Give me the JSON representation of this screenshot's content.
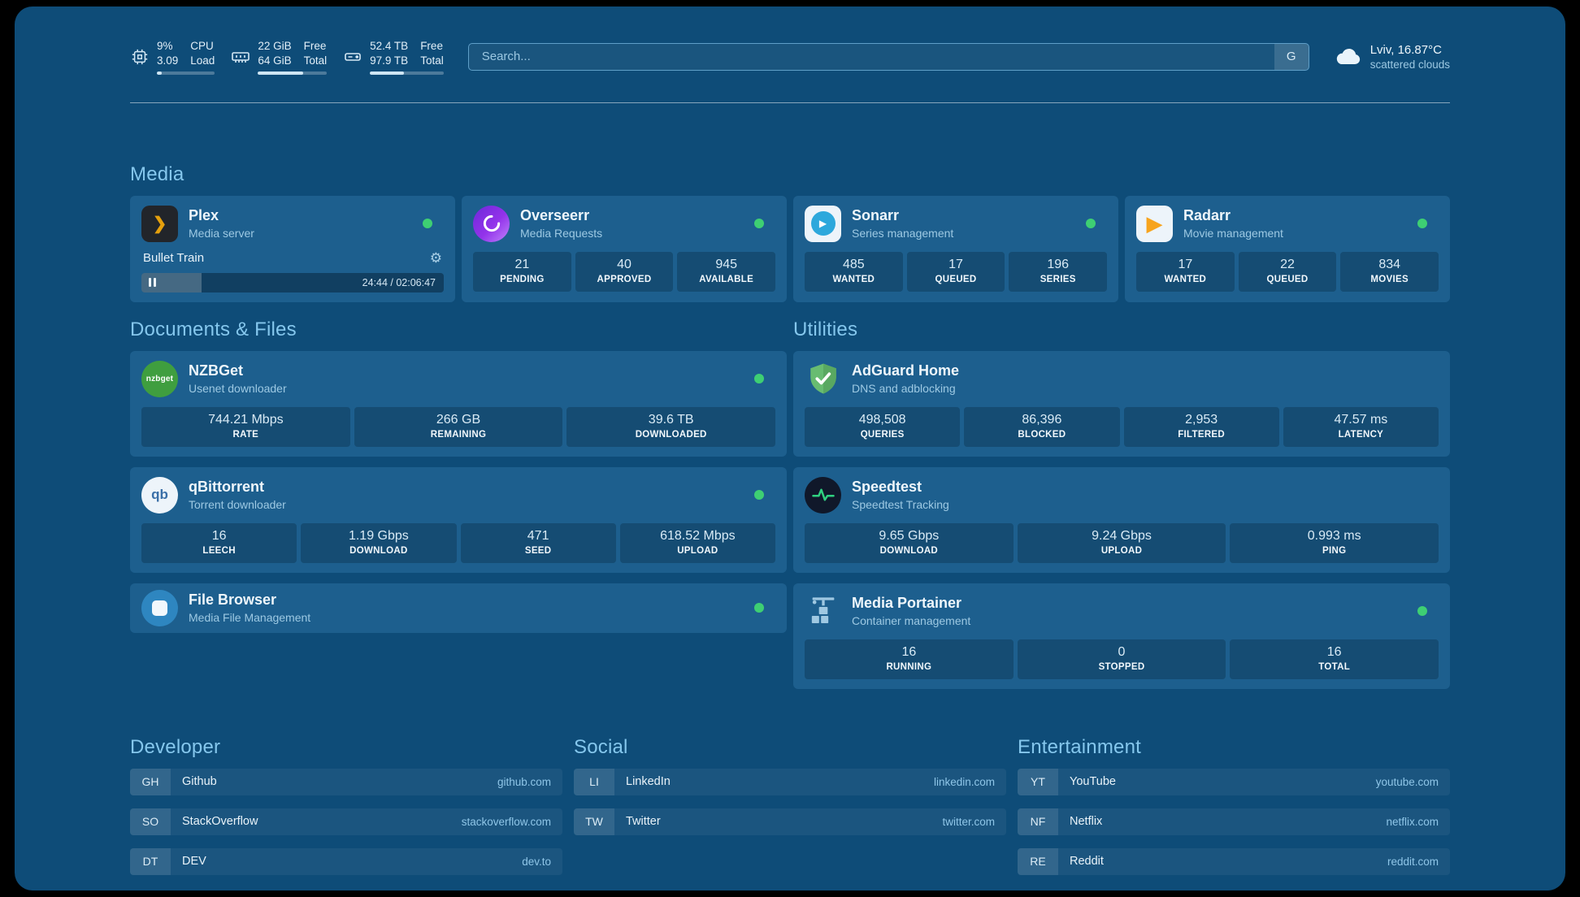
{
  "colors": {
    "background": "#0e4c78",
    "card": "#1d5f8e",
    "section_header": "#85c7ed",
    "status_online": "#3ecf73",
    "plex_amber": "#e5a00d"
  },
  "topbar": {
    "resources": [
      {
        "icon": "cpu-chip-icon",
        "primary": "9%",
        "secondary": "3.09",
        "label_primary": "CPU",
        "label_secondary": "Load",
        "bar_fill_pct": 9
      },
      {
        "icon": "memory-icon",
        "primary": "22 GiB",
        "secondary": "64 GiB",
        "label_primary": "Free",
        "label_secondary": "Total",
        "bar_fill_pct": 66
      },
      {
        "icon": "disk-icon",
        "primary": "52.4 TB",
        "secondary": "97.9 TB",
        "label_primary": "Free",
        "label_secondary": "Total",
        "bar_fill_pct": 46
      }
    ],
    "search": {
      "placeholder": "Search...",
      "provider_button": "G"
    },
    "weather": {
      "icon": "cloud-icon",
      "location": "Lviv, 16.87°C",
      "condition": "scattered clouds"
    }
  },
  "sections": {
    "media": "Media",
    "documents": "Documents & Files",
    "utilities": "Utilities"
  },
  "media_cards": {
    "plex": {
      "title": "Plex",
      "subtitle": "Media server",
      "status": "online",
      "icon": "plex-icon",
      "player": {
        "track": "Bullet Train",
        "time": "24:44 / 02:06:47",
        "progress_pct": 20,
        "state": "paused"
      }
    },
    "overseerr": {
      "title": "Overseerr",
      "subtitle": "Media Requests",
      "status": "online",
      "icon": "overseerr-icon",
      "stats": [
        {
          "value": "21",
          "label": "PENDING"
        },
        {
          "value": "40",
          "label": "APPROVED"
        },
        {
          "value": "945",
          "label": "AVAILABLE"
        }
      ]
    },
    "sonarr": {
      "title": "Sonarr",
      "subtitle": "Series management",
      "status": "online",
      "icon": "sonarr-icon",
      "stats": [
        {
          "value": "485",
          "label": "WANTED"
        },
        {
          "value": "17",
          "label": "QUEUED"
        },
        {
          "value": "196",
          "label": "SERIES"
        }
      ]
    },
    "radarr": {
      "title": "Radarr",
      "subtitle": "Movie management",
      "status": "online",
      "icon": "radarr-icon",
      "stats": [
        {
          "value": "17",
          "label": "WANTED"
        },
        {
          "value": "22",
          "label": "QUEUED"
        },
        {
          "value": "834",
          "label": "MOVIES"
        }
      ]
    }
  },
  "documents_cards": {
    "nzbget": {
      "title": "NZBGet",
      "subtitle": "Usenet downloader",
      "status": "online",
      "icon": "nzbget-icon",
      "icon_text": "nzbget",
      "stats": [
        {
          "value": "744.21 Mbps",
          "label": "RATE"
        },
        {
          "value": "266 GB",
          "label": "REMAINING"
        },
        {
          "value": "39.6 TB",
          "label": "DOWNLOADED"
        }
      ]
    },
    "qbittorrent": {
      "title": "qBittorrent",
      "subtitle": "Torrent downloader",
      "status": "online",
      "icon": "qbittorrent-icon",
      "icon_text": "qb",
      "stats": [
        {
          "value": "16",
          "label": "LEECH"
        },
        {
          "value": "1.19 Gbps",
          "label": "DOWNLOAD"
        },
        {
          "value": "471",
          "label": "SEED"
        },
        {
          "value": "618.52 Mbps",
          "label": "UPLOAD"
        }
      ]
    },
    "filebrowser": {
      "title": "File Browser",
      "subtitle": "Media File Management",
      "status": "online",
      "icon": "filebrowser-icon"
    }
  },
  "utilities_cards": {
    "adguard": {
      "title": "AdGuard Home",
      "subtitle": "DNS and adblocking",
      "icon": "adguard-shield-icon",
      "stats": [
        {
          "value": "498,508",
          "label": "QUERIES"
        },
        {
          "value": "86,396",
          "label": "BLOCKED"
        },
        {
          "value": "2,953",
          "label": "FILTERED"
        },
        {
          "value": "47.57 ms",
          "label": "LATENCY"
        }
      ]
    },
    "speedtest": {
      "title": "Speedtest",
      "subtitle": "Speedtest Tracking",
      "icon": "speedtest-pulse-icon",
      "stats": [
        {
          "value": "9.65 Gbps",
          "label": "DOWNLOAD"
        },
        {
          "value": "9.24 Gbps",
          "label": "UPLOAD"
        },
        {
          "value": "0.993 ms",
          "label": "PING"
        }
      ]
    },
    "portainer": {
      "title": "Media Portainer",
      "subtitle": "Container management",
      "status": "online",
      "icon": "portainer-crane-icon",
      "stats": [
        {
          "value": "16",
          "label": "RUNNING"
        },
        {
          "value": "0",
          "label": "STOPPED"
        },
        {
          "value": "16",
          "label": "TOTAL"
        }
      ]
    }
  },
  "bookmarks": {
    "developer": {
      "title": "Developer",
      "items": [
        {
          "abbr": "GH",
          "name": "Github",
          "domain": "github.com"
        },
        {
          "abbr": "SO",
          "name": "StackOverflow",
          "domain": "stackoverflow.com"
        },
        {
          "abbr": "DT",
          "name": "DEV",
          "domain": "dev.to"
        }
      ]
    },
    "social": {
      "title": "Social",
      "items": [
        {
          "abbr": "LI",
          "name": "LinkedIn",
          "domain": "linkedin.com"
        },
        {
          "abbr": "TW",
          "name": "Twitter",
          "domain": "twitter.com"
        }
      ]
    },
    "entertainment": {
      "title": "Entertainment",
      "items": [
        {
          "abbr": "YT",
          "name": "YouTube",
          "domain": "youtube.com"
        },
        {
          "abbr": "NF",
          "name": "Netflix",
          "domain": "netflix.com"
        },
        {
          "abbr": "RE",
          "name": "Reddit",
          "domain": "reddit.com"
        }
      ]
    }
  }
}
